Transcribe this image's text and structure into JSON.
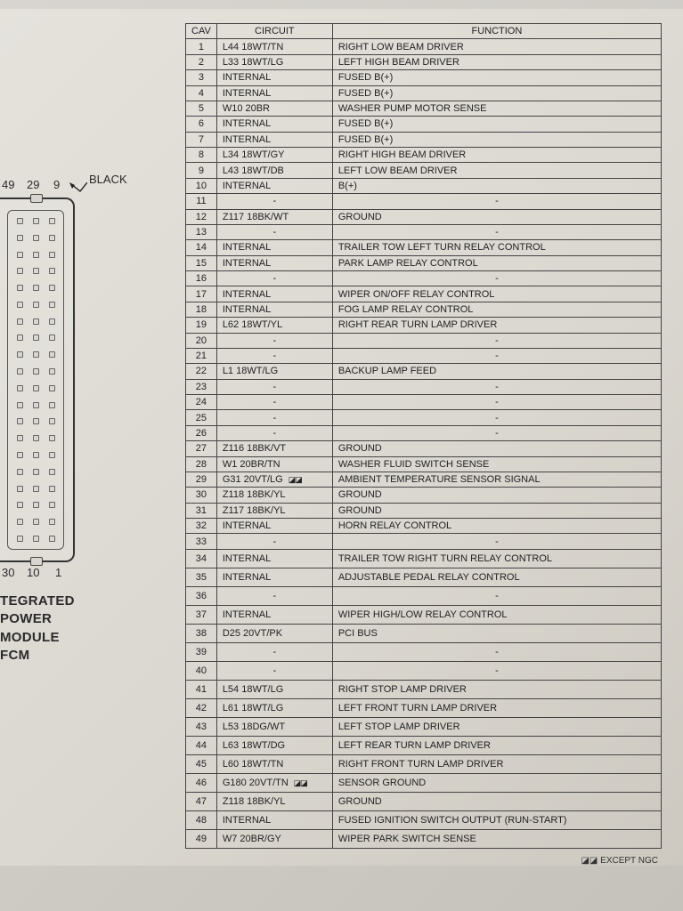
{
  "connector": {
    "top_pins": [
      "49",
      "29",
      "9"
    ],
    "bottom_pins": [
      "30",
      "10",
      "1"
    ],
    "color_label": "BLACK",
    "title_lines": [
      "TEGRATED",
      "POWER",
      "MODULE",
      "FCM"
    ],
    "pin_rows_per_col": 20,
    "cols": 3
  },
  "table": {
    "headers": {
      "cav": "CAV",
      "circuit": "CIRCUIT",
      "function": "FUNCTION"
    },
    "rows": [
      {
        "cav": "1",
        "circuit": "L44 18WT/TN",
        "func": "RIGHT LOW BEAM DRIVER"
      },
      {
        "cav": "2",
        "circuit": "L33 18WT/LG",
        "func": "LEFT HIGH BEAM DRIVER"
      },
      {
        "cav": "3",
        "circuit": "INTERNAL",
        "func": "FUSED B(+)"
      },
      {
        "cav": "4",
        "circuit": "INTERNAL",
        "func": "FUSED B(+)"
      },
      {
        "cav": "5",
        "circuit": "W10 20BR",
        "func": "WASHER PUMP MOTOR SENSE"
      },
      {
        "cav": "6",
        "circuit": "INTERNAL",
        "func": "FUSED B(+)"
      },
      {
        "cav": "7",
        "circuit": "INTERNAL",
        "func": "FUSED B(+)"
      },
      {
        "cav": "8",
        "circuit": "L34 18WT/GY",
        "func": "RIGHT HIGH BEAM DRIVER"
      },
      {
        "cav": "9",
        "circuit": "L43 18WT/DB",
        "func": "LEFT LOW BEAM DRIVER"
      },
      {
        "cav": "10",
        "circuit": "INTERNAL",
        "func": "B(+)"
      },
      {
        "cav": "11",
        "circuit": "-",
        "func": "-",
        "dash": true
      },
      {
        "cav": "12",
        "circuit": "Z117 18BK/WT",
        "func": "GROUND"
      },
      {
        "cav": "13",
        "circuit": "-",
        "func": "-",
        "dash": true
      },
      {
        "cav": "14",
        "circuit": "INTERNAL",
        "func": "TRAILER TOW LEFT TURN RELAY CONTROL"
      },
      {
        "cav": "15",
        "circuit": "INTERNAL",
        "func": "PARK LAMP RELAY CONTROL"
      },
      {
        "cav": "16",
        "circuit": "-",
        "func": "-",
        "dash": true
      },
      {
        "cav": "17",
        "circuit": "INTERNAL",
        "func": "WIPER ON/OFF RELAY CONTROL"
      },
      {
        "cav": "18",
        "circuit": "INTERNAL",
        "func": "FOG LAMP RELAY CONTROL"
      },
      {
        "cav": "19",
        "circuit": "L62 18WT/YL",
        "func": "RIGHT REAR TURN LAMP DRIVER"
      },
      {
        "cav": "20",
        "circuit": "-",
        "func": "-",
        "dash": true
      },
      {
        "cav": "21",
        "circuit": "-",
        "func": "-",
        "dash": true
      },
      {
        "cav": "22",
        "circuit": "L1 18WT/LG",
        "func": "BACKUP LAMP FEED"
      },
      {
        "cav": "23",
        "circuit": "-",
        "func": "-",
        "dash": true
      },
      {
        "cav": "24",
        "circuit": "-",
        "func": "-",
        "dash": true
      },
      {
        "cav": "25",
        "circuit": "-",
        "func": "-",
        "dash": true
      },
      {
        "cav": "26",
        "circuit": "-",
        "func": "-",
        "dash": true
      },
      {
        "cav": "27",
        "circuit": "Z116 18BK/VT",
        "func": "GROUND"
      },
      {
        "cav": "28",
        "circuit": "W1 20BR/TN",
        "func": "WASHER FLUID SWITCH SENSE"
      },
      {
        "cav": "29",
        "circuit": "G31 20VT/LG",
        "func": "AMBIENT TEMPERATURE SENSOR SIGNAL",
        "sym": "◪◪"
      },
      {
        "cav": "30",
        "circuit": "Z118 18BK/YL",
        "func": "GROUND"
      },
      {
        "cav": "31",
        "circuit": "Z117 18BK/YL",
        "func": "GROUND"
      },
      {
        "cav": "32",
        "circuit": "INTERNAL",
        "func": "HORN RELAY CONTROL"
      },
      {
        "cav": "33",
        "circuit": "-",
        "func": "-",
        "dash": true
      },
      {
        "cav": "34",
        "circuit": "INTERNAL",
        "func": "TRAILER TOW RIGHT TURN RELAY CONTROL",
        "pad": true
      },
      {
        "cav": "35",
        "circuit": "INTERNAL",
        "func": "ADJUSTABLE PEDAL RELAY CONTROL",
        "pad": true
      },
      {
        "cav": "36",
        "circuit": "-",
        "func": "-",
        "dash": true,
        "pad": true
      },
      {
        "cav": "37",
        "circuit": "INTERNAL",
        "func": "WIPER HIGH/LOW RELAY CONTROL",
        "pad": true
      },
      {
        "cav": "38",
        "circuit": "D25 20VT/PK",
        "func": "PCI BUS",
        "pad": true
      },
      {
        "cav": "39",
        "circuit": "-",
        "func": "-",
        "dash": true,
        "pad": true
      },
      {
        "cav": "40",
        "circuit": "-",
        "func": "-",
        "dash": true,
        "pad": true
      },
      {
        "cav": "41",
        "circuit": "L54 18WT/LG",
        "func": "RIGHT STOP LAMP DRIVER",
        "pad": true
      },
      {
        "cav": "42",
        "circuit": "L61 18WT/LG",
        "func": "LEFT FRONT TURN LAMP DRIVER",
        "pad": true
      },
      {
        "cav": "43",
        "circuit": "L53 18DG/WT",
        "func": "LEFT STOP LAMP DRIVER",
        "pad": true
      },
      {
        "cav": "44",
        "circuit": "L63 18WT/DG",
        "func": "LEFT REAR TURN LAMP DRIVER",
        "pad": true
      },
      {
        "cav": "45",
        "circuit": "L60 18WT/TN",
        "func": "RIGHT FRONT TURN LAMP DRIVER",
        "pad": true
      },
      {
        "cav": "46",
        "circuit": "G180 20VT/TN",
        "func": "SENSOR GROUND",
        "sym": "◪◪",
        "pad": true
      },
      {
        "cav": "47",
        "circuit": "Z118 18BK/YL",
        "func": "GROUND",
        "pad": true
      },
      {
        "cav": "48",
        "circuit": "INTERNAL",
        "func": "FUSED IGNITION SWITCH OUTPUT (RUN-START)",
        "pad": true
      },
      {
        "cav": "49",
        "circuit": "W7 20BR/GY",
        "func": "WIPER PARK SWITCH SENSE",
        "pad": true
      }
    ]
  },
  "footer": "◪◪ EXCEPT NGC",
  "colors": {
    "bg_light": "#e5e2dc",
    "bg_dark": "#cdc9c1",
    "border": "#444444",
    "text": "#222222"
  }
}
